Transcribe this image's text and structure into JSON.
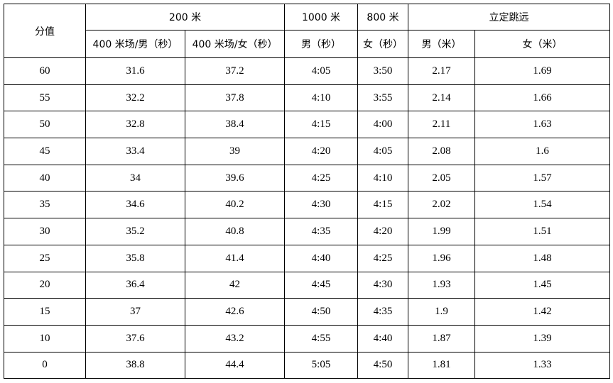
{
  "header": {
    "groups": [
      "分值",
      "200 米",
      "1000 米",
      "800 米",
      "立定跳远"
    ],
    "subheaders": [
      "400 米场/男（秒）",
      "400 米场/女（秒）",
      "男（秒）",
      "女（秒）",
      "男（米）",
      "女（米）"
    ]
  },
  "table": {
    "rows": [
      [
        "60",
        "31.6",
        "37.2",
        "4:05",
        "3:50",
        "2.17",
        "1.69"
      ],
      [
        "55",
        "32.2",
        "37.8",
        "4:10",
        "3:55",
        "2.14",
        "1.66"
      ],
      [
        "50",
        "32.8",
        "38.4",
        "4:15",
        "4:00",
        "2.11",
        "1.63"
      ],
      [
        "45",
        "33.4",
        "39",
        "4:20",
        "4:05",
        "2.08",
        "1.6"
      ],
      [
        "40",
        "34",
        "39.6",
        "4:25",
        "4:10",
        "2.05",
        "1.57"
      ],
      [
        "35",
        "34.6",
        "40.2",
        "4:30",
        "4:15",
        "2.02",
        "1.54"
      ],
      [
        "30",
        "35.2",
        "40.8",
        "4:35",
        "4:20",
        "1.99",
        "1.51"
      ],
      [
        "25",
        "35.8",
        "41.4",
        "4:40",
        "4:25",
        "1.96",
        "1.48"
      ],
      [
        "20",
        "36.4",
        "42",
        "4:45",
        "4:30",
        "1.93",
        "1.45"
      ],
      [
        "15",
        "37",
        "42.6",
        "4:50",
        "4:35",
        "1.9",
        "1.42"
      ],
      [
        "10",
        "37.6",
        "43.2",
        "4:55",
        "4:40",
        "1.87",
        "1.39"
      ],
      [
        "0",
        "38.8",
        "44.4",
        "5:05",
        "4:50",
        "1.81",
        "1.33"
      ]
    ]
  }
}
